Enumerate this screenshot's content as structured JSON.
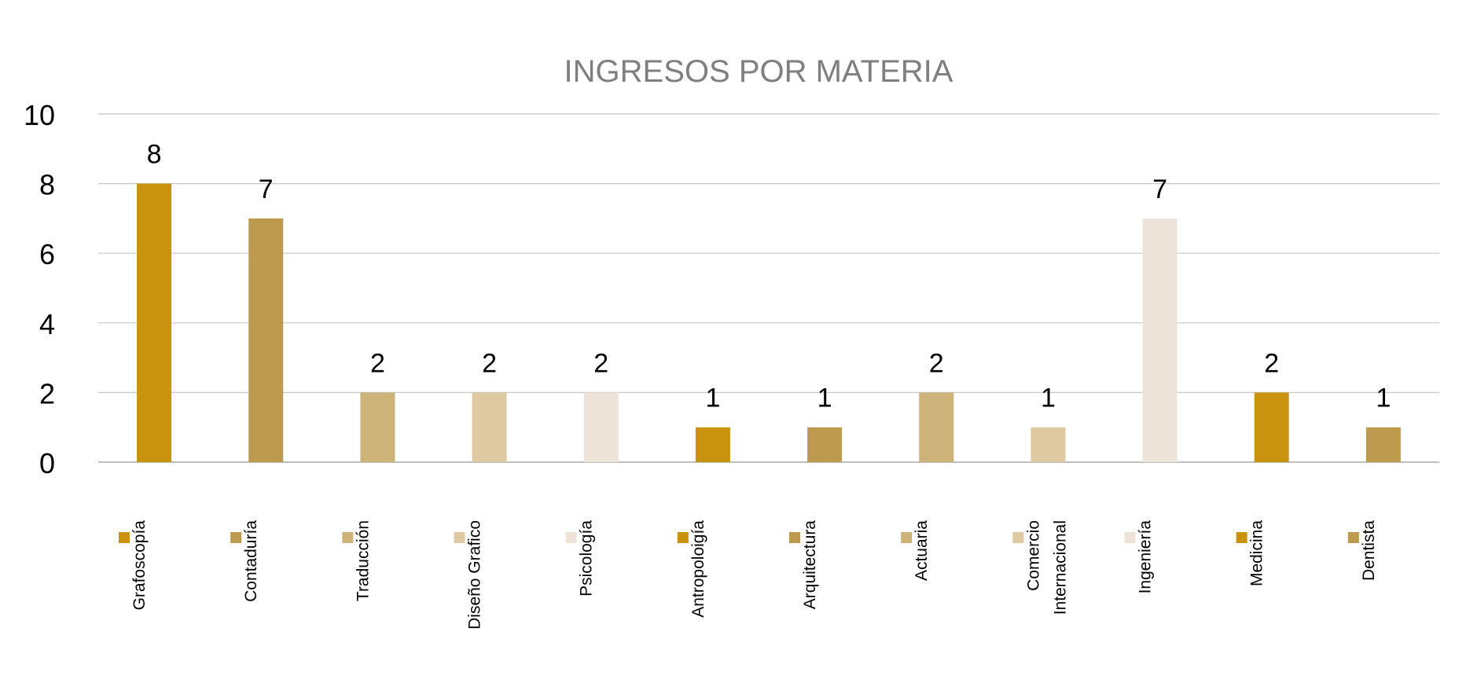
{
  "chart_data": {
    "type": "bar",
    "title": "INGRESOS POR MATERIA",
    "xlabel": "",
    "ylabel": "",
    "ylim": [
      0,
      10
    ],
    "yticks": [
      0,
      2,
      4,
      6,
      8,
      10
    ],
    "grid": true,
    "legend_position": "bottom",
    "categories": [
      "Grafoscopía",
      "Contaduría",
      "Traducción",
      "Diseño Grafico",
      "Psicología",
      "Antropoloigía",
      "Arquitectura",
      "Actuaria",
      "Comercio Internacional",
      "Ingeniería",
      "Medicina",
      "Dentista"
    ],
    "legend_lines": [
      [
        "Grafoscopía"
      ],
      [
        "Contaduría"
      ],
      [
        "Traducción"
      ],
      [
        "Diseño Grafico"
      ],
      [
        "Psicología"
      ],
      [
        "Antropoloigía"
      ],
      [
        "Arquitectura"
      ],
      [
        "Actuaria"
      ],
      [
        "Comercio",
        "Internacional"
      ],
      [
        "Ingeniería"
      ],
      [
        "Medicina"
      ],
      [
        "Dentista"
      ]
    ],
    "values": [
      8,
      7,
      2,
      2,
      2,
      1,
      1,
      2,
      1,
      7,
      2,
      1
    ],
    "colors": [
      "#C9930F",
      "#BE9A4E",
      "#CDB27A",
      "#DEC9A3",
      "#EEE3D9",
      "#C9930F",
      "#BE9A4E",
      "#CDB27A",
      "#DEC9A3",
      "#EEE3D9",
      "#C9930F",
      "#BE9A4E"
    ]
  }
}
